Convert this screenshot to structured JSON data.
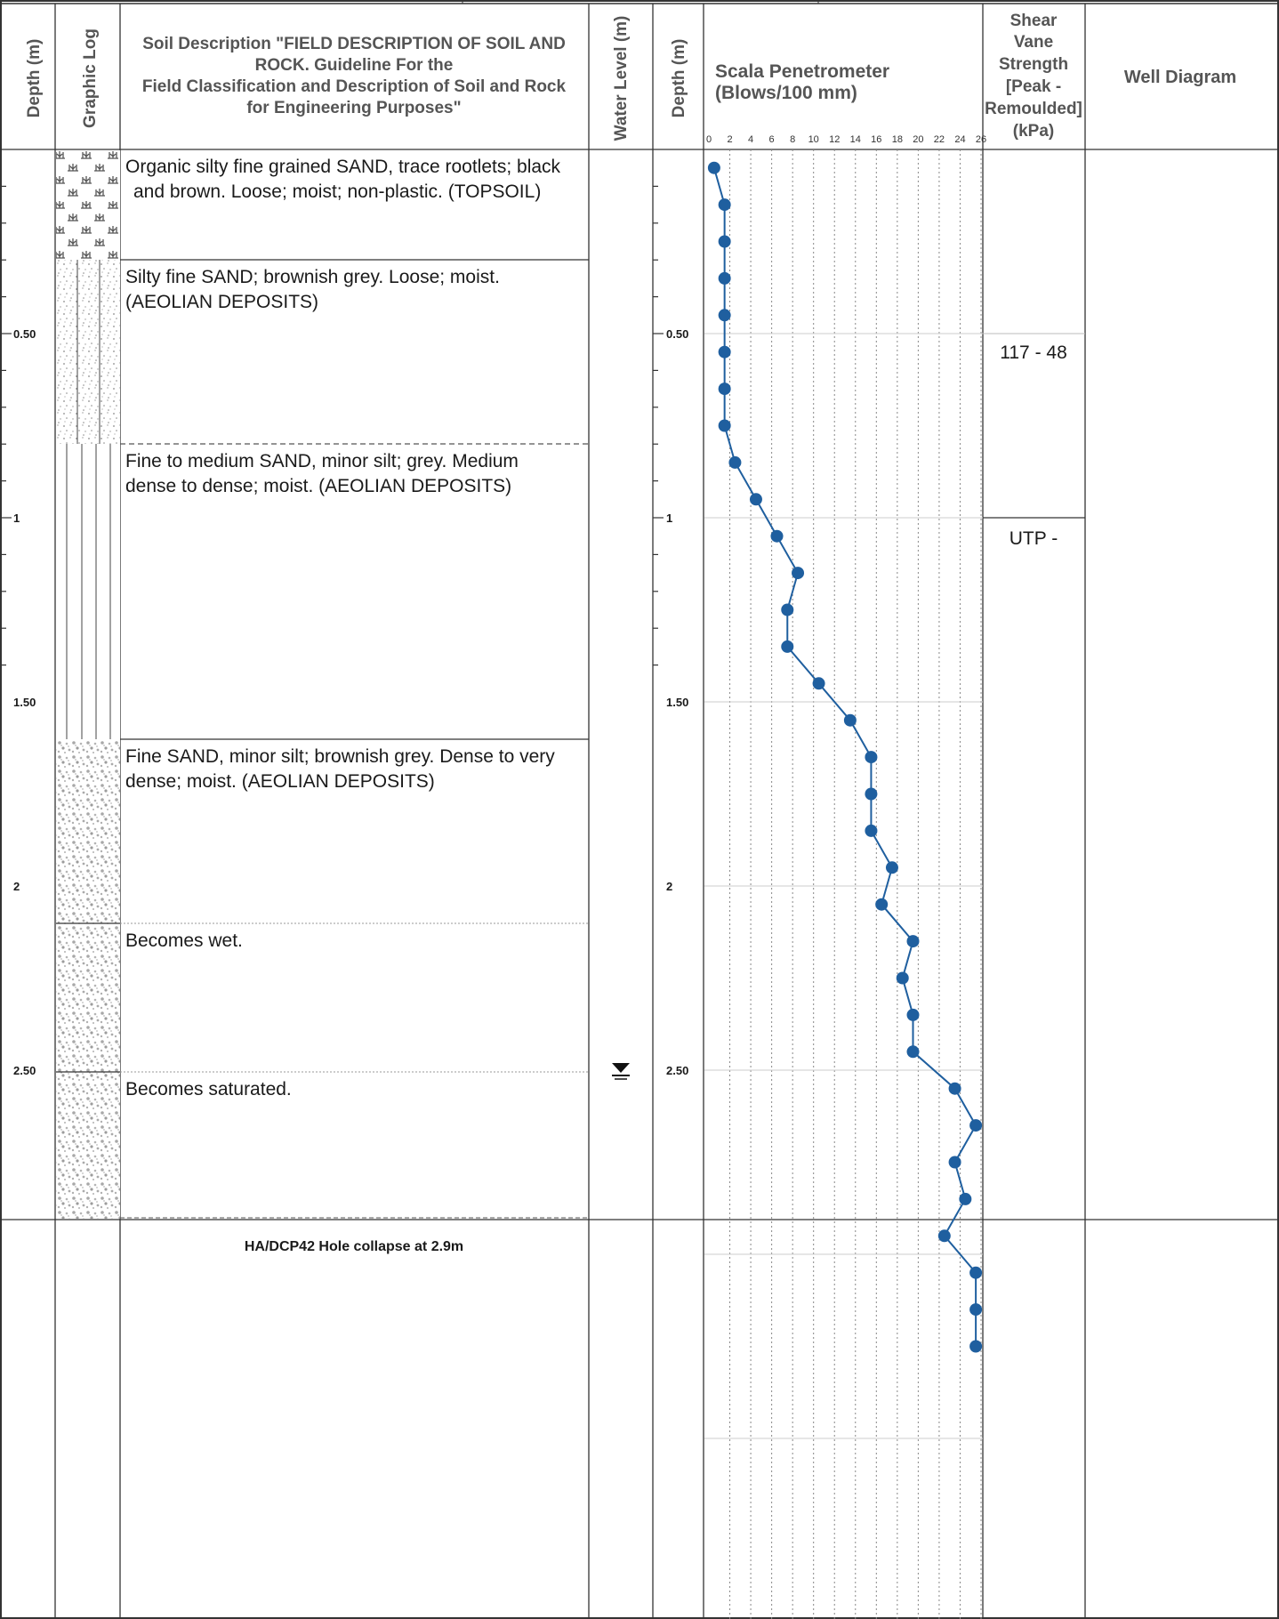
{
  "headers": {
    "depth": "Depth (m)",
    "graphic_log": "Graphic Log",
    "soil_description": [
      "Soil Description \"FIELD DESCRIPTION OF SOIL AND",
      "ROCK. Guideline For the",
      "Field Classification and Description of Soil and Rock",
      "for Engineering Purposes\""
    ],
    "water_level": "Water Level (m)",
    "depth2": "Depth (m)",
    "scala": [
      "Scala Penetrometer",
      "(Blows/100 mm)"
    ],
    "shear_vane": [
      "Shear",
      "Vane",
      "Strength",
      "[Peak -",
      "Remoulded]",
      "(kPa)"
    ],
    "well_diagram": "Well Diagram"
  },
  "depth_labels": [
    "0.50",
    "1",
    "1.50",
    "2",
    "2.50"
  ],
  "layers": [
    {
      "lines": [
        "Organic silty fine grained SAND, trace rootlets; black",
        "and brown. Loose; moist; non-plastic. (TOPSOIL)"
      ],
      "pattern": "topsoil"
    },
    {
      "lines": [
        "Silty fine SAND; brownish grey. Loose; moist.",
        "(AEOLIAN DEPOSITS)"
      ],
      "pattern": "silty-sand"
    },
    {
      "lines": [
        "Fine to medium SAND, minor silt; grey. Medium",
        "dense to dense; moist. (AEOLIAN DEPOSITS)"
      ],
      "pattern": "sand-lines"
    },
    {
      "lines": [
        "Fine SAND, minor silt; brownish grey. Dense to very",
        "dense; moist. (AEOLIAN DEPOSITS)"
      ],
      "pattern": "dense-sand"
    },
    {
      "lines": [
        "Becomes wet."
      ],
      "pattern": "dense-sand"
    },
    {
      "lines": [
        "Becomes saturated."
      ],
      "pattern": "dense-sand"
    }
  ],
  "hole_note": "HA/DCP42 Hole collapse at 2.9m",
  "shear_vane_values": [
    "117 - 48",
    "UTP -"
  ],
  "water_level_symbol": "water-table-icon",
  "colors": {
    "series": "#1f5f9f",
    "grid": "#888888",
    "border": "#333333"
  },
  "chart_data": {
    "type": "line",
    "title": "Scala Penetrometer",
    "xlabel": "(Blows/100 mm)",
    "ylabel": "Depth (m)",
    "x_ticks": [
      0,
      2,
      4,
      6,
      8,
      10,
      12,
      14,
      16,
      18,
      20,
      22,
      24,
      26
    ],
    "xlim": [
      0,
      26
    ],
    "ylim": [
      0,
      3.5
    ],
    "y_ticks": [
      "0.50",
      "1",
      "1.50",
      "2",
      "2.50"
    ],
    "grid": true,
    "series": [
      {
        "depth": [
          0.05,
          0.15,
          0.25,
          0.35,
          0.45,
          0.55,
          0.65,
          0.75,
          0.85,
          0.95,
          1.05,
          1.15,
          1.25,
          1.35,
          1.45,
          1.55,
          1.65,
          1.75,
          1.85,
          1.95,
          2.05,
          2.15,
          2.25,
          2.35,
          2.45,
          2.55,
          2.65,
          2.75,
          2.85,
          2.95,
          3.05,
          3.15,
          3.25
        ],
        "blows": [
          0.5,
          1.5,
          1.5,
          1.5,
          1.5,
          1.5,
          1.5,
          1.5,
          2.5,
          4.5,
          6.5,
          8.5,
          7.5,
          7.5,
          10.5,
          13.5,
          15.5,
          15.5,
          15.5,
          17.5,
          16.5,
          19.5,
          18.5,
          19.5,
          19.5,
          23.5,
          25.5,
          23.5,
          24.5,
          22.5,
          25.5,
          25.5,
          25.5
        ]
      }
    ]
  }
}
